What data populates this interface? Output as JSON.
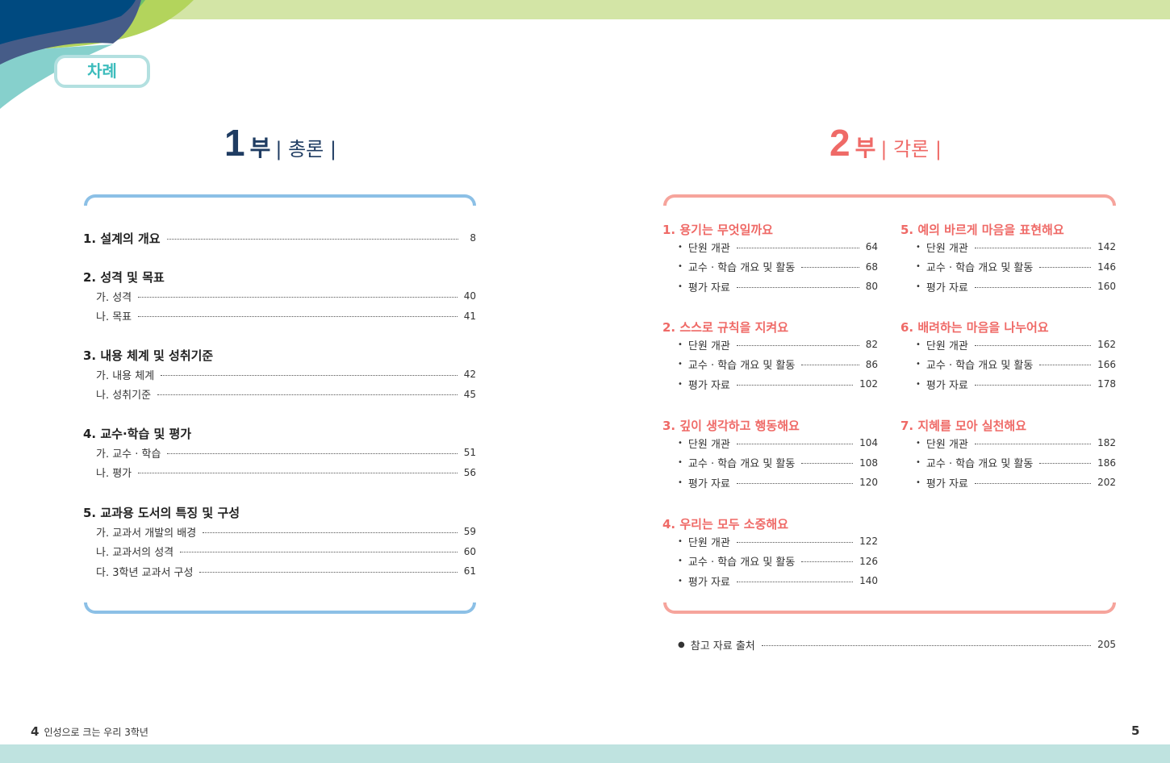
{
  "toc_badge": "차례",
  "part1": {
    "num": "1",
    "bu": "부",
    "title": "| 총론 |",
    "color": "#1f3c62",
    "sections": [
      {
        "title": "1. 설계의 개요",
        "page": "8",
        "items": []
      },
      {
        "title": "2. 성격 및 목표",
        "items": [
          {
            "label": "가. 성격",
            "page": "40"
          },
          {
            "label": "나. 목표",
            "page": "41"
          }
        ]
      },
      {
        "title": "3. 내용 체계 및 성취기준",
        "items": [
          {
            "label": "가. 내용 체계",
            "page": "42"
          },
          {
            "label": "나. 성취기준",
            "page": "45"
          }
        ]
      },
      {
        "title": "4. 교수·학습 및 평가",
        "items": [
          {
            "label": "가. 교수 · 학습",
            "page": "51"
          },
          {
            "label": "나. 평가",
            "page": "56"
          }
        ]
      },
      {
        "title": "5. 교과용 도서의 특징 및 구성",
        "items": [
          {
            "label": "가. 교과서 개발의 배경",
            "page": "59"
          },
          {
            "label": "나. 교과서의 성격",
            "page": "60"
          },
          {
            "label": "다. 3학년 교과서 구성",
            "page": "61"
          }
        ]
      }
    ]
  },
  "part2": {
    "num": "2",
    "bu": "부",
    "title": "| 각론 |",
    "color": "#ef6a67",
    "units": [
      {
        "title": "1. 용기는 무엇일까요",
        "items": [
          {
            "label": "단원 개관",
            "page": "64"
          },
          {
            "label": "교수 · 학습 개요 및 활동",
            "page": "68"
          },
          {
            "label": "평가 자료",
            "page": "80"
          }
        ]
      },
      {
        "title": "2. 스스로 규칙을 지켜요",
        "items": [
          {
            "label": "단원 개관",
            "page": "82"
          },
          {
            "label": "교수 · 학습 개요 및 활동",
            "page": "86"
          },
          {
            "label": "평가 자료",
            "page": "102"
          }
        ]
      },
      {
        "title": "3. 깊이 생각하고 행동해요",
        "items": [
          {
            "label": "단원 개관",
            "page": "104"
          },
          {
            "label": "교수 · 학습 개요 및 활동",
            "page": "108"
          },
          {
            "label": "평가 자료",
            "page": "120"
          }
        ]
      },
      {
        "title": "4. 우리는 모두 소중해요",
        "items": [
          {
            "label": "단원 개관",
            "page": "122"
          },
          {
            "label": "교수 · 학습 개요 및 활동",
            "page": "126"
          },
          {
            "label": "평가 자료",
            "page": "140"
          }
        ]
      },
      {
        "title": "5. 예의 바르게 마음을 표현해요",
        "items": [
          {
            "label": "단원 개관",
            "page": "142"
          },
          {
            "label": "교수 · 학습 개요 및 활동",
            "page": "146"
          },
          {
            "label": "평가 자료",
            "page": "160"
          }
        ]
      },
      {
        "title": "6. 배려하는 마음을 나누어요",
        "items": [
          {
            "label": "단원 개관",
            "page": "162"
          },
          {
            "label": "교수 · 학습 개요 및 활동",
            "page": "166"
          },
          {
            "label": "평가 자료",
            "page": "178"
          }
        ]
      },
      {
        "title": "7. 지혜를 모아 실천해요",
        "items": [
          {
            "label": "단원 개관",
            "page": "182"
          },
          {
            "label": "교수 · 학습 개요 및 활동",
            "page": "186"
          },
          {
            "label": "평가 자료",
            "page": "202"
          }
        ]
      }
    ],
    "reference": {
      "label": "참고 자료 출처",
      "page": "205"
    }
  },
  "footer": {
    "left_page": "4",
    "book_title": "인성으로 크는 우리 3학년",
    "right_page": "5"
  }
}
